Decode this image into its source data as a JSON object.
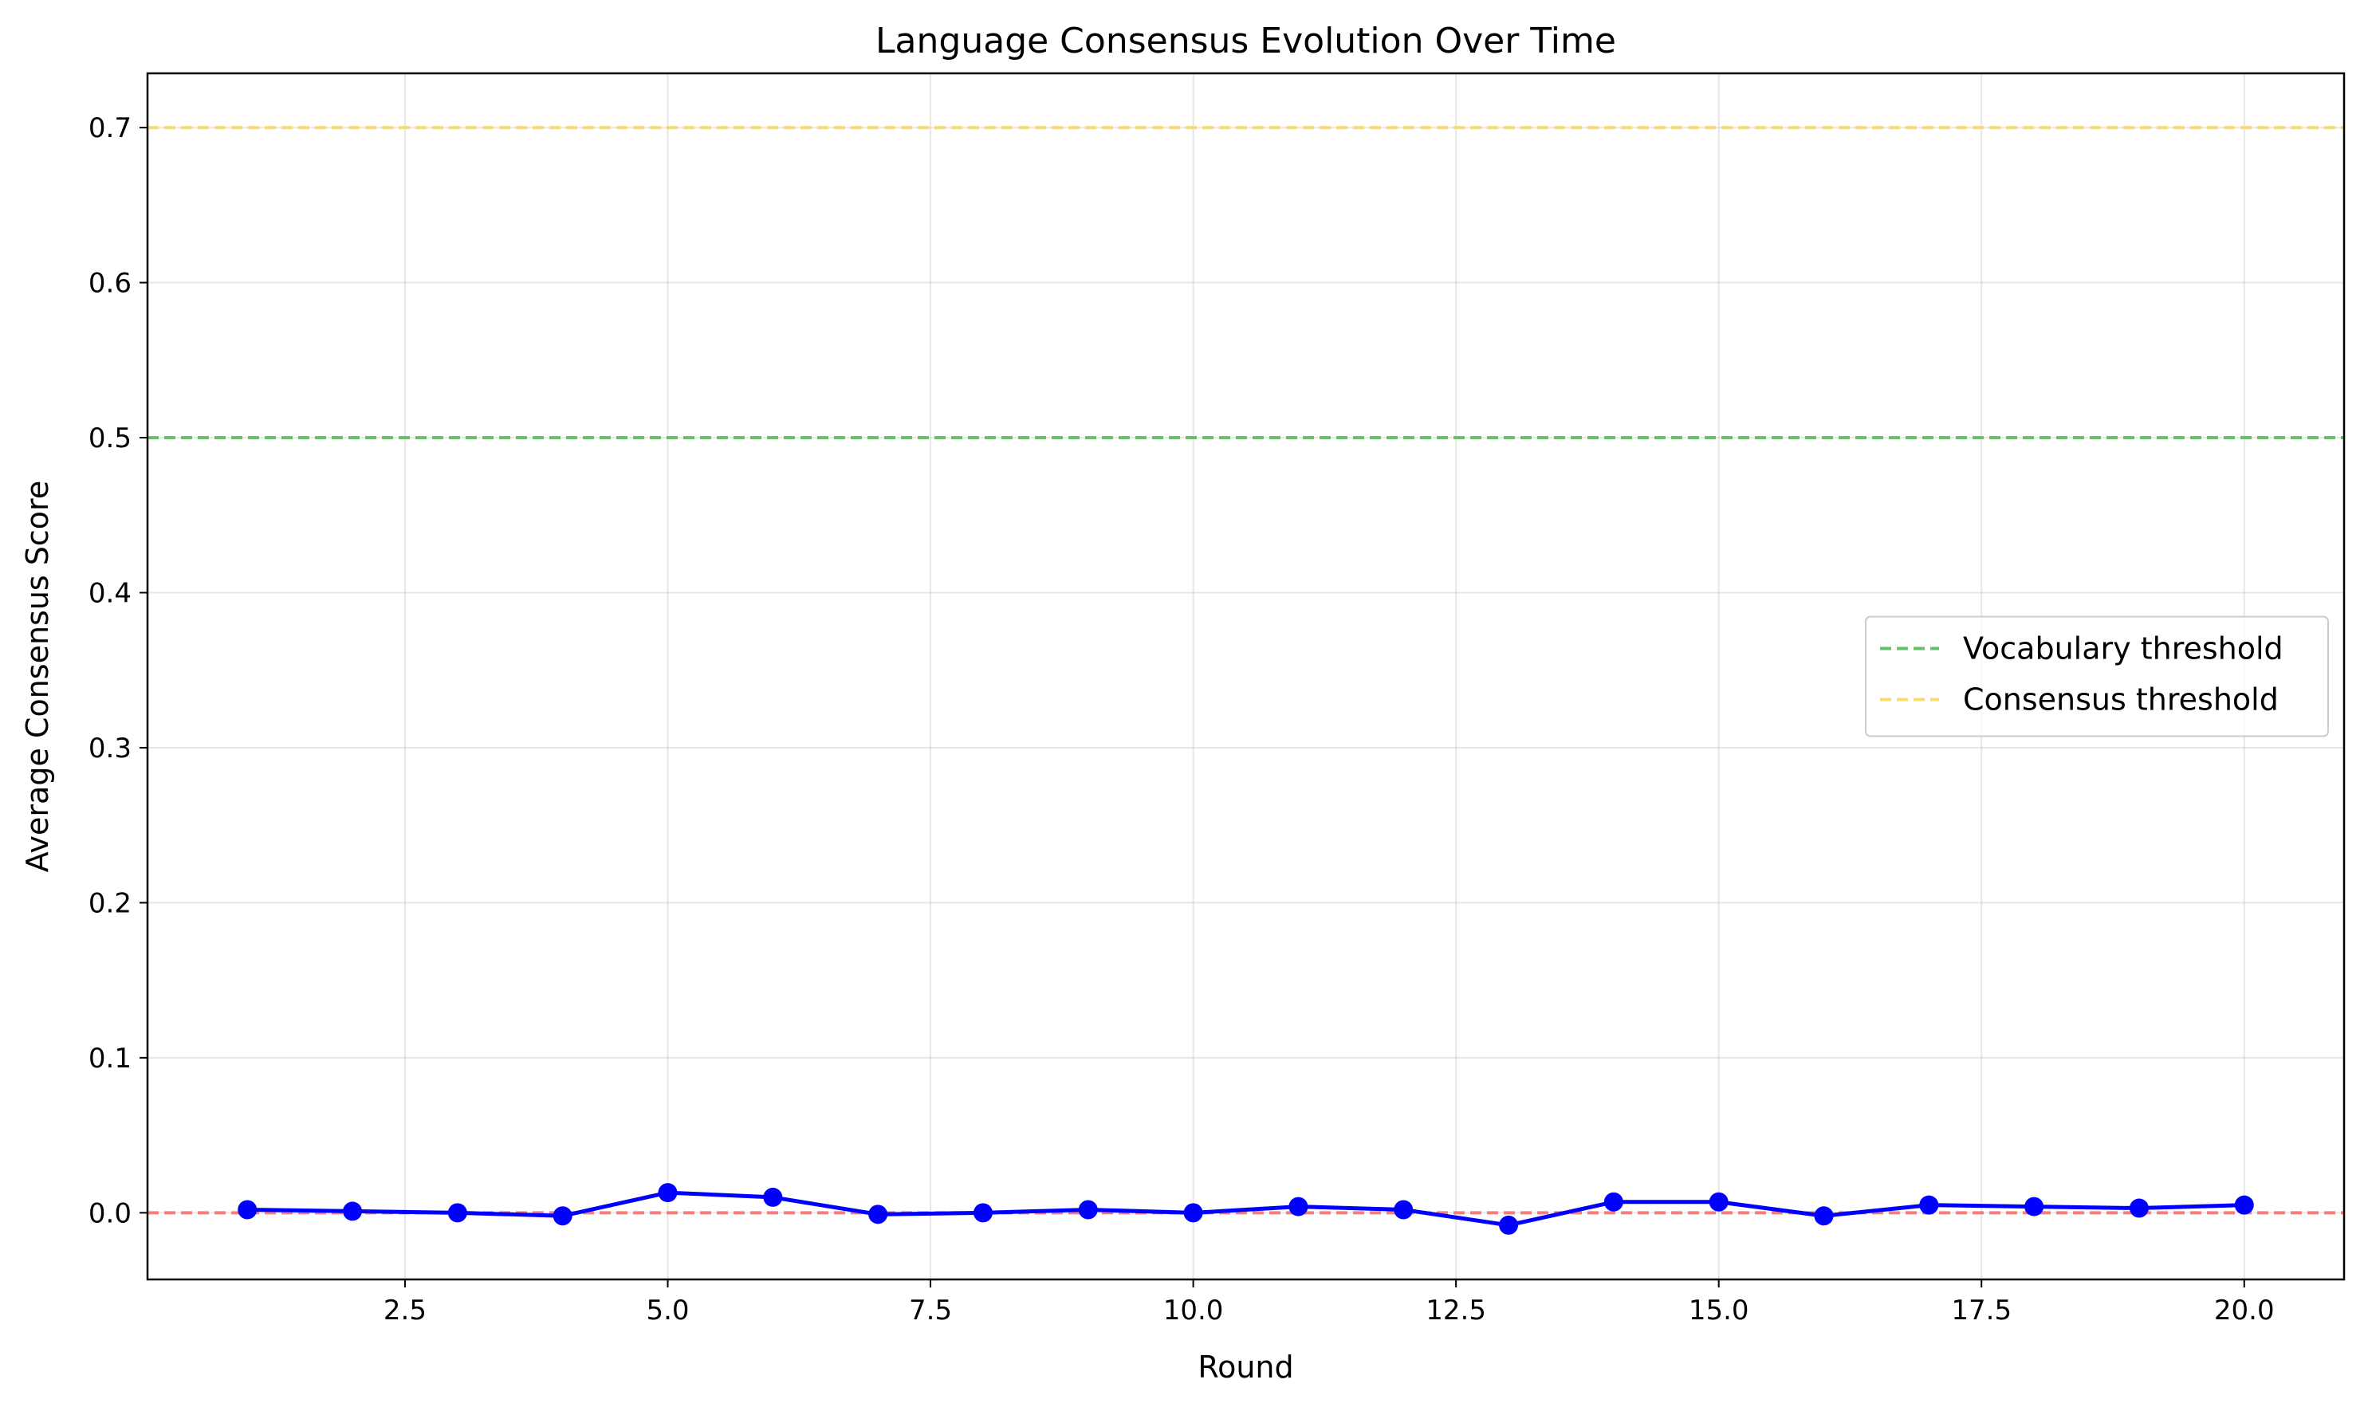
{
  "chart_data": {
    "type": "line",
    "title": "Language Consensus Evolution Over Time",
    "xlabel": "Round",
    "ylabel": "Average Consensus Score",
    "xlim": [
      0.05,
      20.95
    ],
    "ylim": [
      -0.043,
      0.735
    ],
    "xticks": [
      2.5,
      5.0,
      7.5,
      10.0,
      12.5,
      15.0,
      17.5,
      20.0
    ],
    "xtick_labels": [
      "2.5",
      "5.0",
      "7.5",
      "10.0",
      "12.5",
      "15.0",
      "17.5",
      "20.0"
    ],
    "yticks": [
      0.0,
      0.1,
      0.2,
      0.3,
      0.4,
      0.5,
      0.6,
      0.7
    ],
    "ytick_labels": [
      "0.0",
      "0.1",
      "0.2",
      "0.3",
      "0.4",
      "0.5",
      "0.6",
      "0.7"
    ],
    "grid": true,
    "legend_position": "center-right",
    "series": [
      {
        "color": "#0000ff",
        "marker": "circle",
        "x": [
          1,
          2,
          3,
          4,
          5,
          6,
          7,
          8,
          9,
          10,
          11,
          12,
          13,
          14,
          15,
          16,
          17,
          18,
          19,
          20
        ],
        "y": [
          0.002,
          0.001,
          0.0,
          -0.002,
          0.013,
          0.01,
          -0.001,
          0.0,
          0.002,
          0.0,
          0.004,
          0.002,
          -0.008,
          0.007,
          0.007,
          -0.002,
          0.005,
          0.004,
          0.003,
          0.005
        ]
      }
    ],
    "reference_lines": [
      {
        "y": 0.0,
        "color": "#f08080",
        "style": "dashed",
        "label": ""
      },
      {
        "y": 0.5,
        "color": "#6abf69",
        "style": "dashed",
        "label": "Vocabulary threshold"
      },
      {
        "y": 0.7,
        "color": "#f7dc6f",
        "style": "dashed",
        "label": "Consensus threshold"
      }
    ],
    "legend": [
      {
        "label": "Vocabulary threshold",
        "color": "#6abf69",
        "style": "dashed"
      },
      {
        "label": "Consensus threshold",
        "color": "#f7dc6f",
        "style": "dashed"
      }
    ]
  }
}
